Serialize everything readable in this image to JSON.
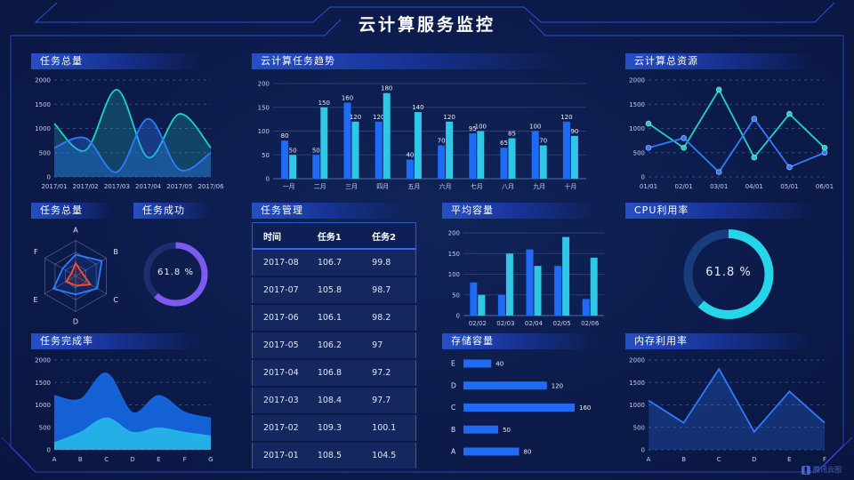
{
  "page": {
    "title": "云计算服务监控",
    "watermark": "腾讯云图"
  },
  "colors": {
    "background": "#0c1b4b",
    "accent_blue": "#1f6bf5",
    "accent_cyan": "#2ec7e6",
    "accent_teal": "#1ed3c3",
    "accent_purple": "#7d59f0",
    "accent_red": "#ff4f2e",
    "panel_header": "#2852cd",
    "frame_line": "#2b4fd0"
  },
  "panels": {
    "task_total_area": {
      "title": "任务总量"
    },
    "task_trend": {
      "title": "云计算任务趋势"
    },
    "total_resources": {
      "title": "云计算总资源"
    },
    "task_total_radar": {
      "title": "任务总量"
    },
    "task_success": {
      "title": "任务成功",
      "value_label": "61.8 %"
    },
    "task_manage": {
      "title": "任务管理"
    },
    "avg_capacity": {
      "title": "平均容量"
    },
    "cpu": {
      "title": "CPU利用率",
      "value_label": "61.8 %"
    },
    "completion": {
      "title": "任务完成率"
    },
    "storage": {
      "title": "存储容量"
    },
    "memory": {
      "title": "内存利用率"
    }
  },
  "table": {
    "headers": [
      "时间",
      "任务1",
      "任务2"
    ],
    "rows": [
      [
        "2017-08",
        "106.7",
        "99.8"
      ],
      [
        "2017-07",
        "105.8",
        "98.7"
      ],
      [
        "2017-06",
        "106.1",
        "98.2"
      ],
      [
        "2017-05",
        "106.2",
        "97"
      ],
      [
        "2017-04",
        "106.8",
        "97.2"
      ],
      [
        "2017-03",
        "108.4",
        "97.7"
      ],
      [
        "2017-02",
        "109.3",
        "100.1"
      ],
      [
        "2017-01",
        "108.5",
        "104.5"
      ]
    ]
  },
  "chart_data": [
    {
      "id": "task_total_area",
      "type": "area",
      "title": "任务总量",
      "x": [
        "2017/01",
        "2017/02",
        "2017/03",
        "2017/04",
        "2017/05",
        "2017/06"
      ],
      "ylim": [
        0,
        2000
      ],
      "yticks": [
        0,
        500,
        1000,
        1500,
        2000
      ],
      "grid": "dashed",
      "series": [
        {
          "name": "series-teal",
          "color": "#1ed3c3",
          "smooth": true,
          "fill_opacity": 0.22,
          "values": [
            1100,
            550,
            1800,
            400,
            1300,
            600
          ]
        },
        {
          "name": "series-blue",
          "color": "#2f7bff",
          "smooth": true,
          "fill_opacity": 0.32,
          "values": [
            600,
            800,
            100,
            1200,
            150,
            500
          ]
        }
      ]
    },
    {
      "id": "task_trend",
      "type": "bar",
      "title": "云计算任务趋势",
      "categories": [
        "一月",
        "二月",
        "三月",
        "四月",
        "五月",
        "六月",
        "七月",
        "八月",
        "九月",
        "十月"
      ],
      "ylim": [
        0,
        200
      ],
      "yticks": [
        0,
        50,
        100,
        150,
        200
      ],
      "show_labels": true,
      "series": [
        {
          "name": "任务1",
          "color": "#1f6bf5",
          "values": [
            80,
            50,
            160,
            120,
            40,
            70,
            95,
            65,
            100,
            120
          ]
        },
        {
          "name": "任务2",
          "color": "#2ec7e6",
          "values": [
            50,
            150,
            120,
            180,
            140,
            120,
            100,
            85,
            70,
            90
          ]
        }
      ]
    },
    {
      "id": "total_resources",
      "type": "line",
      "title": "云计算总资源",
      "x": [
        "01/01",
        "02/01",
        "03/01",
        "04/01",
        "05/01",
        "06/01"
      ],
      "ylim": [
        0,
        2000
      ],
      "yticks": [
        0,
        500,
        1000,
        1500,
        2000
      ],
      "grid": "dashed",
      "series": [
        {
          "name": "series-teal",
          "color": "#1ed3c3",
          "values": [
            1100,
            600,
            1800,
            400,
            1300,
            600
          ]
        },
        {
          "name": "series-blue",
          "color": "#2f7bff",
          "values": [
            600,
            800,
            100,
            1200,
            200,
            500
          ]
        }
      ]
    },
    {
      "id": "task_total_radar",
      "type": "radar",
      "title": "任务总量",
      "axes": [
        "A",
        "B",
        "C",
        "D",
        "E",
        "F"
      ],
      "max": 100,
      "series": [
        {
          "name": "blue-polygon",
          "color": "#2f7bff",
          "values": [
            60,
            85,
            70,
            52,
            72,
            42
          ]
        },
        {
          "name": "red-polygon",
          "color": "#ff4f2e",
          "values": [
            36,
            20,
            48,
            27,
            30,
            14
          ]
        }
      ]
    },
    {
      "id": "task_success_gauge",
      "type": "gauge",
      "title": "任务成功",
      "value": 61.8,
      "color": "#7d59f0",
      "track": "#1d2e6e"
    },
    {
      "id": "avg_capacity",
      "type": "bar",
      "title": "平均容量",
      "categories": [
        "02/02",
        "02/03",
        "02/04",
        "02/05",
        "02/06"
      ],
      "ylim": [
        0,
        200
      ],
      "yticks": [
        0,
        50,
        100,
        150,
        200
      ],
      "show_labels": false,
      "series": [
        {
          "name": "series-blue",
          "color": "#1f6bf5",
          "values": [
            80,
            50,
            160,
            120,
            40
          ]
        },
        {
          "name": "series-cyan",
          "color": "#2ec7e6",
          "values": [
            50,
            150,
            120,
            190,
            140
          ]
        }
      ]
    },
    {
      "id": "cpu_gauge",
      "type": "gauge",
      "title": "CPU利用率",
      "value": 61.8,
      "color": "#25d6e8",
      "track": "#173d7d"
    },
    {
      "id": "completion",
      "type": "area",
      "title": "任务完成率",
      "x": [
        "A",
        "B",
        "C",
        "D",
        "E",
        "F",
        "G"
      ],
      "ylim": [
        0,
        2000
      ],
      "yticks": [
        0,
        500,
        1000,
        1500,
        2000
      ],
      "grid": "dashed",
      "series": [
        {
          "name": "layer-total",
          "color": "#1565dd",
          "smooth": true,
          "fill_opacity": 0.95,
          "values": [
            1200,
            1120,
            1700,
            820,
            1200,
            830,
            700
          ]
        },
        {
          "name": "layer-bottom",
          "color": "#25b3e8",
          "smooth": true,
          "fill_opacity": 0.95,
          "values": [
            150,
            380,
            700,
            380,
            480,
            380,
            300
          ]
        }
      ]
    },
    {
      "id": "storage",
      "type": "hbar",
      "title": "存储容量",
      "categories": [
        "E",
        "D",
        "C",
        "B",
        "A"
      ],
      "values": [
        40,
        120,
        160,
        50,
        80
      ],
      "color": "#1f6bf5",
      "xmax": 160
    },
    {
      "id": "memory",
      "type": "area",
      "title": "内存利用率",
      "x": [
        "A",
        "B",
        "C",
        "D",
        "E",
        "F"
      ],
      "ylim": [
        0,
        2000
      ],
      "yticks": [
        0,
        500,
        1000,
        1500,
        2000
      ],
      "grid": "dashed",
      "series": [
        {
          "name": "series-blue",
          "color": "#2f7bff",
          "smooth": false,
          "fill_opacity": 0.25,
          "values": [
            1100,
            600,
            1800,
            400,
            1300,
            600
          ]
        }
      ]
    }
  ]
}
